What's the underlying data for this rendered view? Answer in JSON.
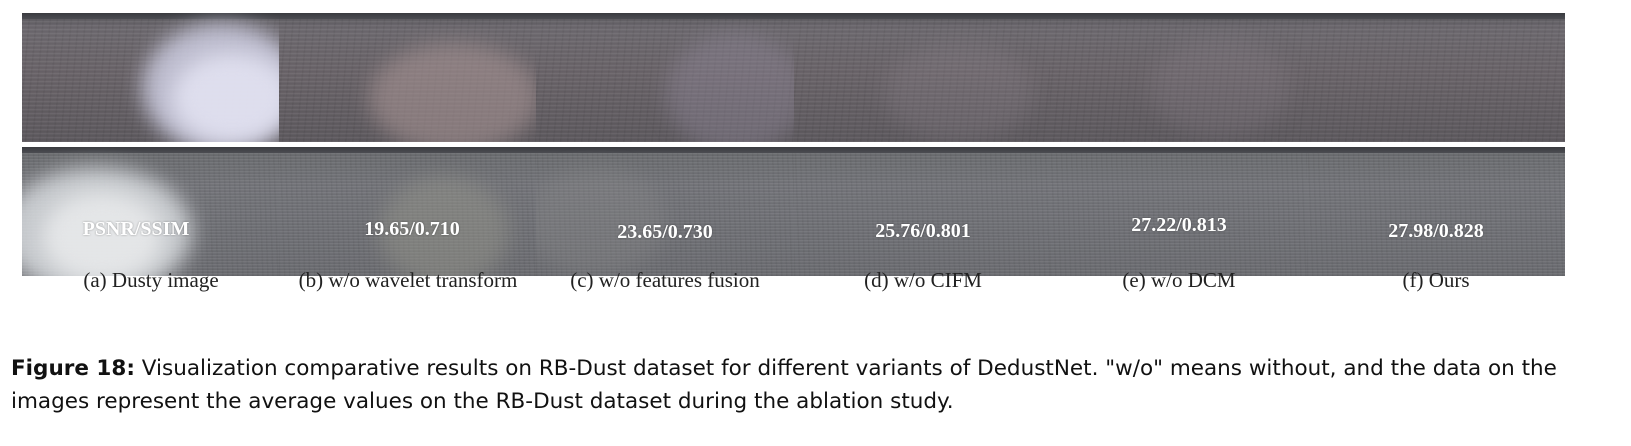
{
  "panels": [
    {
      "caption": "(a) Dusty image",
      "metric": "PSNR/SSIM",
      "dust": "heavy"
    },
    {
      "caption": "(b) w/o wavelet transform",
      "metric": "19.65/0.710",
      "dust": "medium"
    },
    {
      "caption": "(c) w/o features fusion",
      "metric": "23.65/0.730",
      "dust": "light"
    },
    {
      "caption": "(d) w/o CIFM",
      "metric": "25.76/0.801",
      "dust": "faint"
    },
    {
      "caption": "(e) w/o DCM",
      "metric": "27.22/0.813",
      "dust": "faint"
    },
    {
      "caption": "(f) Ours",
      "metric": "27.98/0.828",
      "dust": "none"
    }
  ],
  "figure": {
    "label": "Figure 18:",
    "text": "Visualization comparative results on RB-Dust dataset for different variants of DedustNet. \"w/o\" means without, and the data on the images represent the average values on the RB-Dust dataset during the ablation study."
  }
}
